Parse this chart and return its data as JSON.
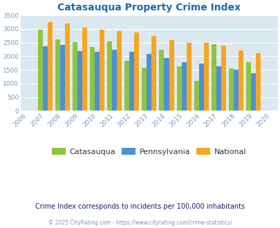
{
  "title": "Catasauqua Property Crime Index",
  "years": [
    2006,
    2007,
    2008,
    2009,
    2010,
    2011,
    2012,
    2013,
    2014,
    2015,
    2016,
    2017,
    2018,
    2019,
    2020
  ],
  "catasauqua": [
    null,
    2980,
    2620,
    2510,
    2340,
    2550,
    1820,
    1570,
    2230,
    1640,
    1090,
    2450,
    1540,
    1780,
    null
  ],
  "pennsylvania": [
    null,
    2370,
    2420,
    2190,
    2170,
    2230,
    2160,
    2080,
    1940,
    1790,
    1720,
    1640,
    1490,
    1380,
    null
  ],
  "national": [
    null,
    3260,
    3200,
    3040,
    2960,
    2920,
    2860,
    2730,
    2600,
    2500,
    2480,
    2390,
    2220,
    2110,
    null
  ],
  "bar_colors": {
    "catasauqua": "#8dc63f",
    "pennsylvania": "#4d90d5",
    "national": "#f5a623"
  },
  "background_color": "#dce8f0",
  "ylim": [
    0,
    3500
  ],
  "yticks": [
    0,
    500,
    1000,
    1500,
    2000,
    2500,
    3000,
    3500
  ],
  "legend_labels": [
    "Catasauqua",
    "Pennsylvania",
    "National"
  ],
  "subtitle": "Crime Index corresponds to incidents per 100,000 inhabitants",
  "footer": "© 2025 CityRating.com - https://www.cityrating.com/crime-statistics/",
  "title_color": "#1a6ab0",
  "subtitle_color": "#1a1a6e",
  "footer_color": "#7a9ab0"
}
